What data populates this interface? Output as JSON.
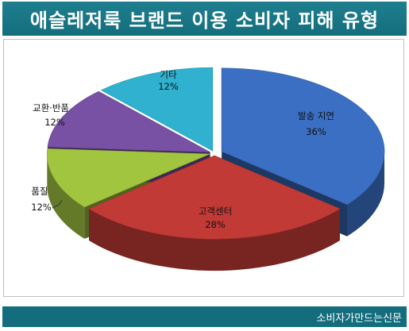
{
  "header": {
    "title": "애슬레저룩 브랜드 이용 소비자 피해 유형"
  },
  "footer": {
    "source": "소비자가만드는신문"
  },
  "chart_data": {
    "type": "pie",
    "title": "애슬레저룩 브랜드 이용 소비자 피해 유형",
    "unit": "%",
    "slices": [
      {
        "name": "발송 지연",
        "value": 36,
        "label": "36%",
        "color": "#3a6fc4"
      },
      {
        "name": "고객센터",
        "value": 28,
        "label": "28%",
        "color": "#c23a36"
      },
      {
        "name": "품질",
        "value": 12,
        "label": "12%",
        "color": "#a2c540"
      },
      {
        "name": "교환·반품",
        "value": 12,
        "label": "12%",
        "color": "#7851a5"
      },
      {
        "name": "기타",
        "value": 12,
        "label": "12%",
        "color": "#2fb1cf"
      }
    ],
    "legend": "none",
    "style": "3d-exploded-pie"
  }
}
